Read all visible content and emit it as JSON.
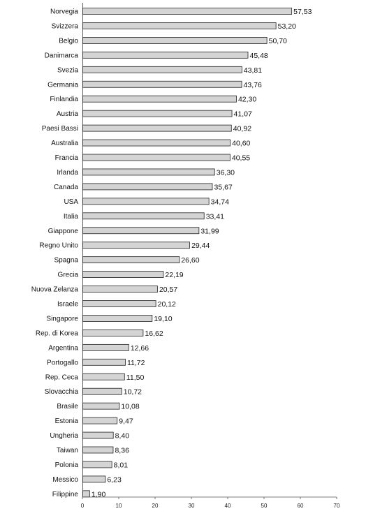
{
  "chart_data": {
    "type": "bar",
    "orientation": "horizontal",
    "title": "",
    "xlabel": "",
    "ylabel": "",
    "xlim": [
      0,
      70
    ],
    "xticks": [
      "0",
      "10",
      "20",
      "30",
      "40",
      "50",
      "60",
      "70"
    ],
    "grid": false,
    "legend": "none",
    "bar_color": "#d4d4d4",
    "bar_edge_color": "#222222",
    "categories": [
      "Norvegia",
      "Svizzera",
      "Belgio",
      "Danimarca",
      "Svezia",
      "Germania",
      "Finlandia",
      "Austria",
      "Paesi Bassi",
      "Australia",
      "Francia",
      "Irlanda",
      "Canada",
      "USA",
      "Italia",
      "Giappone",
      "Regno Unito",
      "Spagna",
      "Grecia",
      "Nuova Zelanza",
      "Israele",
      "Singapore",
      "Rep. di Korea",
      "Argentina",
      "Portogallo",
      "Rep. Ceca",
      "Slovacchia",
      "Brasile",
      "Estonia",
      "Ungheria",
      "Taiwan",
      "Polonia",
      "Messico",
      "Filippine"
    ],
    "values": [
      57.53,
      53.2,
      50.7,
      45.48,
      43.81,
      43.76,
      42.3,
      41.07,
      40.92,
      40.6,
      40.55,
      36.3,
      35.67,
      34.74,
      33.41,
      31.99,
      29.44,
      26.6,
      22.19,
      20.57,
      20.12,
      19.1,
      16.62,
      12.66,
      11.72,
      11.5,
      10.72,
      10.08,
      9.47,
      8.4,
      8.36,
      8.01,
      6.23,
      1.9
    ],
    "value_labels": [
      "57,53",
      "53,20",
      "50,70",
      "45,48",
      "43,81",
      "43,76",
      "42,30",
      "41,07",
      "40,92",
      "40,60",
      "40,55",
      "36,30",
      "35,67",
      "34,74",
      "33,41",
      "31,99",
      "29,44",
      "26,60",
      "22,19",
      "20,57",
      "20,12",
      "19,10",
      "16,62",
      "12,66",
      "11,72",
      "11,50",
      "10,72",
      "10,08",
      "9,47",
      "8,40",
      "8,36",
      "8,01",
      "6,23",
      "1,90"
    ]
  }
}
